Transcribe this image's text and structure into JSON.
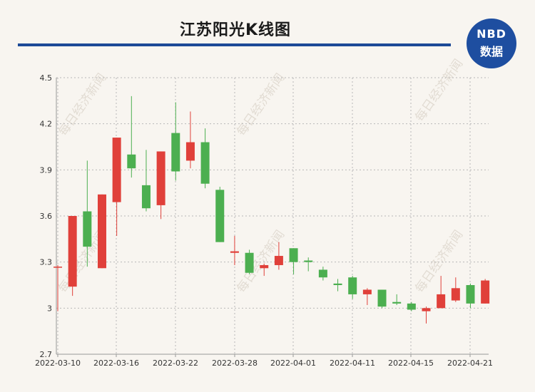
{
  "title": "江苏阳光K线图",
  "logo": {
    "line1": "NBD",
    "line2": "数据"
  },
  "watermark": "每日经济新闻",
  "colors": {
    "up": "#e0403a",
    "down": "#4caf50",
    "grid": "#b8b8b8",
    "title_rule": "#1c4a97",
    "logo": "#1e4ea0"
  },
  "chart_data": {
    "type": "candlestick",
    "ylim": [
      2.7,
      4.5
    ],
    "yticks": [
      4.5,
      4.2,
      3.9,
      3.6,
      3.3,
      3,
      2.7
    ],
    "grid": true,
    "xtick_labels": [
      "2022-03-10",
      "2022-03-16",
      "2022-03-22",
      "2022-03-28",
      "2022-04-01",
      "2022-04-11",
      "2022-04-15",
      "2022-04-21"
    ],
    "candles": [
      {
        "o": 3.27,
        "c": 3.27,
        "h": 3.28,
        "l": 2.98
      },
      {
        "o": 3.14,
        "c": 3.6,
        "h": 3.6,
        "l": 3.08
      },
      {
        "o": 3.63,
        "c": 3.4,
        "h": 3.96,
        "l": 3.27
      },
      {
        "o": 3.26,
        "c": 3.74,
        "h": 3.74,
        "l": 3.26
      },
      {
        "o": 3.69,
        "c": 4.11,
        "h": 4.11,
        "l": 3.47
      },
      {
        "o": 4.0,
        "c": 3.91,
        "h": 4.38,
        "l": 3.85
      },
      {
        "o": 3.8,
        "c": 3.65,
        "h": 4.03,
        "l": 3.63
      },
      {
        "o": 3.67,
        "c": 4.02,
        "h": 4.02,
        "l": 3.58
      },
      {
        "o": 4.14,
        "c": 3.89,
        "h": 4.34,
        "l": 3.83
      },
      {
        "o": 3.96,
        "c": 4.08,
        "h": 4.28,
        "l": 3.91
      },
      {
        "o": 4.08,
        "c": 3.81,
        "h": 4.17,
        "l": 3.78
      },
      {
        "o": 3.77,
        "c": 3.43,
        "h": 3.79,
        "l": 3.43
      },
      {
        "o": 3.36,
        "c": 3.37,
        "h": 3.47,
        "l": 3.28
      },
      {
        "o": 3.36,
        "c": 3.23,
        "h": 3.38,
        "l": 3.22
      },
      {
        "o": 3.26,
        "c": 3.28,
        "h": 3.29,
        "l": 3.21
      },
      {
        "o": 3.28,
        "c": 3.34,
        "h": 3.43,
        "l": 3.25
      },
      {
        "o": 3.39,
        "c": 3.3,
        "h": 3.39,
        "l": 3.22
      },
      {
        "o": 3.31,
        "c": 3.3,
        "h": 3.33,
        "l": 3.24
      },
      {
        "o": 3.25,
        "c": 3.2,
        "h": 3.27,
        "l": 3.18
      },
      {
        "o": 3.16,
        "c": 3.15,
        "h": 3.19,
        "l": 3.11
      },
      {
        "o": 3.2,
        "c": 3.09,
        "h": 3.21,
        "l": 3.06
      },
      {
        "o": 3.09,
        "c": 3.12,
        "h": 3.13,
        "l": 3.02
      },
      {
        "o": 3.12,
        "c": 3.01,
        "h": 3.12,
        "l": 3.0
      },
      {
        "o": 3.04,
        "c": 3.03,
        "h": 3.09,
        "l": 3.02
      },
      {
        "o": 3.03,
        "c": 2.99,
        "h": 3.04,
        "l": 2.98
      },
      {
        "o": 2.98,
        "c": 3.0,
        "h": 3.01,
        "l": 2.9
      },
      {
        "o": 3.0,
        "c": 3.09,
        "h": 3.21,
        "l": 3.0
      },
      {
        "o": 3.05,
        "c": 3.13,
        "h": 3.2,
        "l": 3.04
      },
      {
        "o": 3.15,
        "c": 3.03,
        "h": 3.16,
        "l": 3.0
      },
      {
        "o": 3.03,
        "c": 3.18,
        "h": 3.19,
        "l": 3.03
      }
    ]
  }
}
